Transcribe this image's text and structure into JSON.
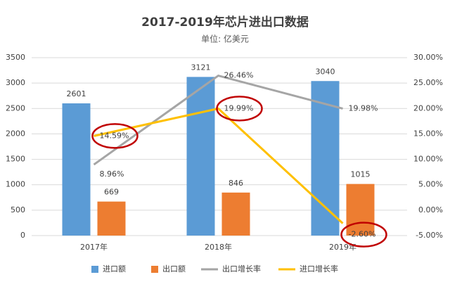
{
  "chart_data": {
    "type": "bar",
    "title": "2017-2019年芯片进出口数据",
    "subtitle": "单位:  亿美元",
    "categories": [
      "2017年",
      "2018年",
      "2019年"
    ],
    "series": [
      {
        "name": "进口额",
        "type": "bar",
        "color": "#5b9bd5",
        "values": [
          2601,
          3121,
          3040
        ]
      },
      {
        "name": "出口额",
        "type": "bar",
        "color": "#ed7d31",
        "values": [
          669,
          846,
          1015
        ]
      },
      {
        "name": "出口增长率",
        "type": "line",
        "axis": "y2",
        "color": "#a5a5a5",
        "values": [
          8.96,
          26.46,
          19.98
        ],
        "value_labels": [
          "8.96%",
          "26.46%",
          "19.98%"
        ]
      },
      {
        "name": "进口增长率",
        "type": "line",
        "axis": "y2",
        "color": "#ffc000",
        "values": [
          14.59,
          19.99,
          -2.6
        ],
        "value_labels": [
          "14.59%",
          "19.99%",
          "-2.60%"
        ]
      }
    ],
    "ylim": [
      0,
      3500
    ],
    "yticks": [
      0,
      500,
      1000,
      1500,
      2000,
      2500,
      3000,
      3500
    ],
    "y2lim": [
      -5,
      30
    ],
    "y2ticks": [
      {
        "value": -5,
        "label": "-5.00%"
      },
      {
        "value": 0,
        "label": "0.00%"
      },
      {
        "value": 5,
        "label": "5.00%"
      },
      {
        "value": 10,
        "label": "10.00%"
      },
      {
        "value": 15,
        "label": "15.00%"
      },
      {
        "value": 20,
        "label": "20.00%"
      },
      {
        "value": 25,
        "label": "25.00%"
      },
      {
        "value": 30,
        "label": "30.00%"
      }
    ],
    "grid": true
  }
}
